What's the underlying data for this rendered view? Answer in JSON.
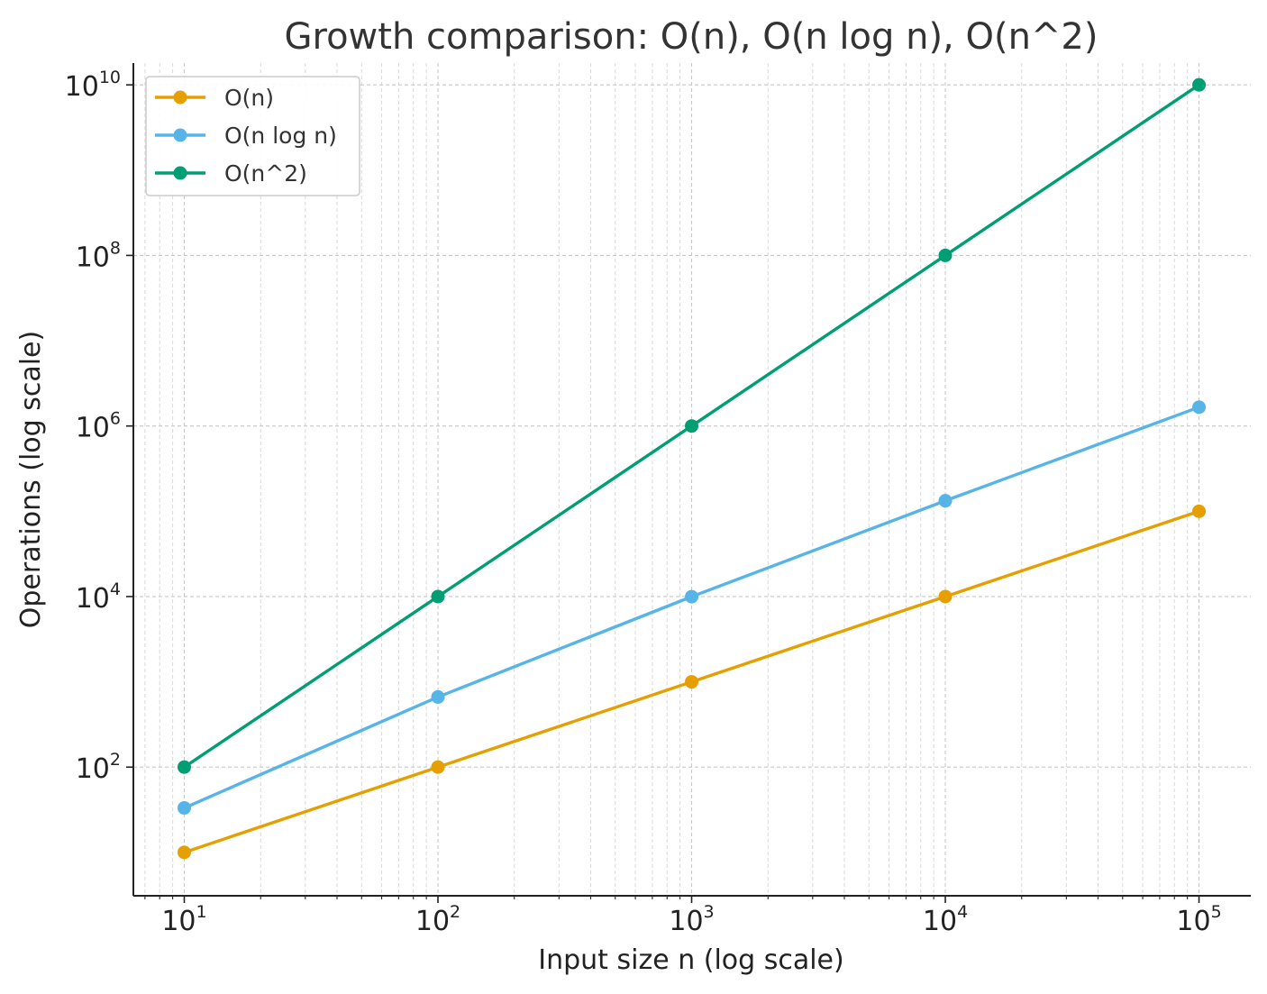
{
  "chart_data": {
    "type": "line",
    "title": "Growth comparison: O(n), O(n log n), O(n^2)",
    "xlabel": "Input size n (log scale)",
    "ylabel": "Operations (log scale)",
    "x_scale": "log",
    "y_scale": "log",
    "x": [
      10,
      100,
      1000,
      10000,
      100000
    ],
    "xlim": [
      6.3,
      160000
    ],
    "ylim": [
      3.1,
      18000000000
    ],
    "x_ticks": [
      {
        "value": 10,
        "base": "10",
        "exp": "1"
      },
      {
        "value": 100,
        "base": "10",
        "exp": "2"
      },
      {
        "value": 1000,
        "base": "10",
        "exp": "3"
      },
      {
        "value": 10000,
        "base": "10",
        "exp": "4"
      },
      {
        "value": 100000,
        "base": "10",
        "exp": "5"
      }
    ],
    "y_ticks": [
      {
        "value": 100,
        "base": "10",
        "exp": "2"
      },
      {
        "value": 10000,
        "base": "10",
        "exp": "4"
      },
      {
        "value": 1000000,
        "base": "10",
        "exp": "6"
      },
      {
        "value": 100000000,
        "base": "10",
        "exp": "8"
      },
      {
        "value": 10000000000,
        "base": "10",
        "exp": "10"
      }
    ],
    "grid": true,
    "legend_position": "top-left",
    "series": [
      {
        "name": "O(n)",
        "color": "#E69F00",
        "values": [
          10,
          100,
          1000,
          10000,
          100000
        ]
      },
      {
        "name": "O(n log n)",
        "color": "#56B4E9",
        "values": [
          33.2,
          664,
          9966,
          132877,
          1660964
        ]
      },
      {
        "name": "O(n^2)",
        "color": "#009E73",
        "values": [
          100,
          10000,
          1000000,
          100000000,
          10000000000
        ]
      }
    ]
  }
}
